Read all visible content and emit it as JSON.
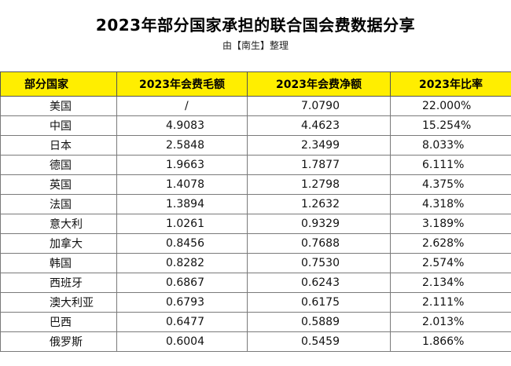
{
  "title": "2023年部分国家承担的联合国会费数据分享",
  "subtitle": "由【南生】整理",
  "table": {
    "headers": [
      "部分国家",
      "2023年会费毛额",
      "2023年会费净额",
      "2023年比率"
    ],
    "rows": [
      {
        "country": "美国",
        "gross": "/",
        "net": "7.0790",
        "ratio": "22.000%"
      },
      {
        "country": "中国",
        "gross": "4.9083",
        "net": "4.4623",
        "ratio": "15.254%"
      },
      {
        "country": "日本",
        "gross": "2.5848",
        "net": "2.3499",
        "ratio": "8.033%"
      },
      {
        "country": "德国",
        "gross": "1.9663",
        "net": "1.7877",
        "ratio": "6.111%"
      },
      {
        "country": "英国",
        "gross": "1.4078",
        "net": "1.2798",
        "ratio": "4.375%"
      },
      {
        "country": "法国",
        "gross": "1.3894",
        "net": "1.2632",
        "ratio": "4.318%"
      },
      {
        "country": "意大利",
        "gross": "1.0261",
        "net": "0.9329",
        "ratio": "3.189%"
      },
      {
        "country": "加拿大",
        "gross": "0.8456",
        "net": "0.7688",
        "ratio": "2.628%"
      },
      {
        "country": "韩国",
        "gross": "0.8282",
        "net": "0.7530",
        "ratio": "2.574%"
      },
      {
        "country": "西班牙",
        "gross": "0.6867",
        "net": "0.6243",
        "ratio": "2.134%"
      },
      {
        "country": "澳大利亚",
        "gross": "0.6793",
        "net": "0.6175",
        "ratio": "2.111%"
      },
      {
        "country": "巴西",
        "gross": "0.6477",
        "net": "0.5889",
        "ratio": "2.013%"
      },
      {
        "country": "俄罗斯",
        "gross": "0.6004",
        "net": "0.5459",
        "ratio": "1.866%"
      }
    ]
  }
}
